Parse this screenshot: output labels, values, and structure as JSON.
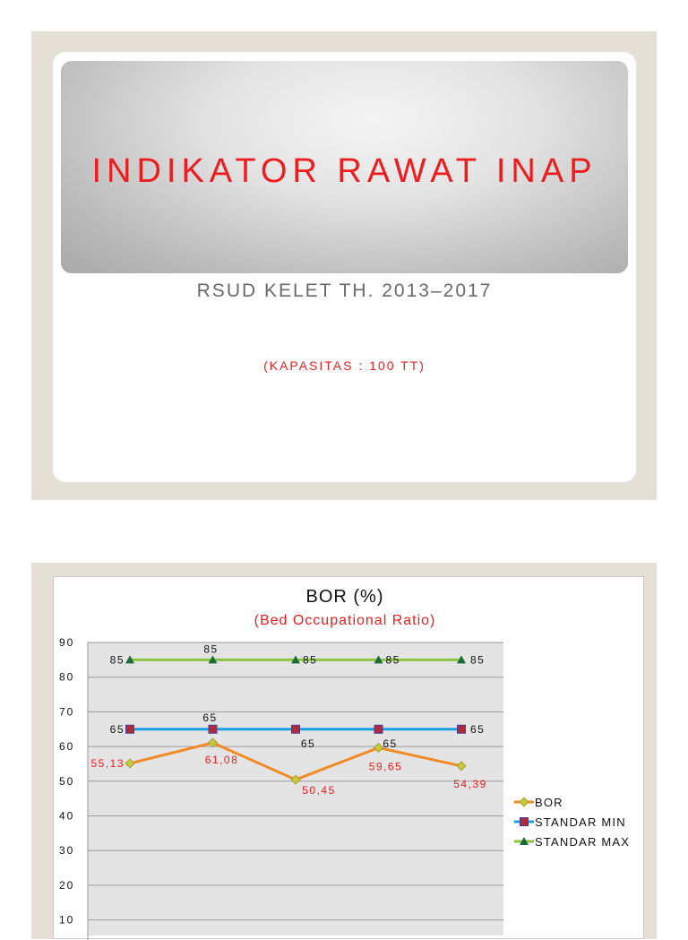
{
  "slide1": {
    "title": "INDIKATOR RAWAT INAP",
    "subtitle": "RSUD KELET TH. 2013–2017",
    "note": "(KAPASITAS : 100 TT)"
  },
  "colors": {
    "title_red": "#ee1c1c",
    "bor": "#f28a24",
    "standar_min": "#1aa0e0",
    "standar_max": "#8cc63f",
    "plot_bg": "#e4e4e4"
  },
  "chart_data": {
    "type": "line",
    "title": "BOR (%)",
    "subtitle": "(Bed Occupational Ratio)",
    "ylim": [
      0,
      90
    ],
    "yticks": [
      90,
      80,
      70,
      60,
      50,
      40,
      30,
      20,
      10
    ],
    "grid": true,
    "legend_position": "right",
    "series": [
      {
        "name": "BOR",
        "values": [
          55.13,
          61.08,
          50.45,
          59.65,
          54.39
        ],
        "labels": [
          "55,13",
          "61,08",
          "50,45",
          "59,65",
          "54,39"
        ]
      },
      {
        "name": "STANDAR MIN",
        "values": [
          65,
          65,
          65,
          65,
          65
        ],
        "labels": [
          "65",
          "65",
          "65",
          "65",
          "65"
        ]
      },
      {
        "name": "STANDAR MAX",
        "values": [
          85,
          85,
          85,
          85,
          85
        ],
        "labels": [
          "85",
          "85",
          "85",
          "85",
          "85"
        ]
      }
    ]
  }
}
